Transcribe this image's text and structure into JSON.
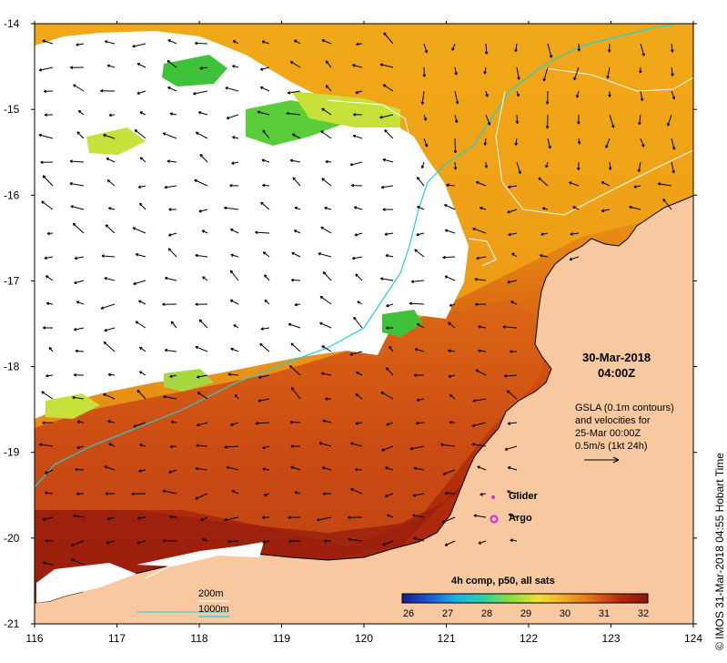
{
  "map": {
    "lon_ticks": [
      "116",
      "117",
      "118",
      "119",
      "120",
      "121",
      "122",
      "123",
      "124"
    ],
    "lat_ticks": [
      "-14",
      "-15",
      "-16",
      "-17",
      "-18",
      "-19",
      "-20",
      "-21"
    ],
    "colors": {
      "land": "#f8c8a0",
      "deep_red": "#9a1f0c",
      "dark_orange": "#c44a10",
      "orange": "#e27d10",
      "light_orange": "#f0a818",
      "yellow": "#f5c82a",
      "yellow_green": "#c8e03a",
      "green": "#3fc23a",
      "cyan_contour": "#20d0e0",
      "white_contour": "#ffffff"
    }
  },
  "title": {
    "date": "30-Mar-2018",
    "time": "04:00Z"
  },
  "gsla": {
    "line1": "GSLA (0.1m contours)",
    "line2": "and velocities for",
    "line3": "25-Mar 00:00Z",
    "line4": "0.5m/s (1kt 24h)"
  },
  "legend": {
    "glider": "Glider",
    "argo": "Argo",
    "glider_color": "#c040c0",
    "argo_color": "#e020e0"
  },
  "colorbar": {
    "title": "4h comp, p50, all sats",
    "ticks": [
      "26",
      "27",
      "28",
      "29",
      "30",
      "31",
      "32"
    ],
    "stops": [
      "#1a1a8c",
      "#1e5ad2",
      "#18b4e6",
      "#2ed2a0",
      "#8ae03a",
      "#f0e030",
      "#f5a820",
      "#e26a14",
      "#b8260c",
      "#8c140a"
    ]
  },
  "depth_key": {
    "shallow": "200m",
    "deep": "1000m"
  },
  "credit": "IMOS 31-Mar-2018 04:55 Hobart Time",
  "copyright": "©"
}
